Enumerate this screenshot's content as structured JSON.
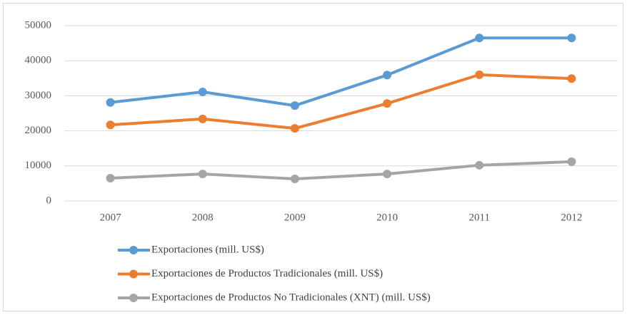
{
  "chart_data": {
    "type": "line",
    "categories": [
      "2007",
      "2008",
      "2009",
      "2010",
      "2011",
      "2012"
    ],
    "series": [
      {
        "name": "Exportaciones (mill. US$)",
        "color": "#5b9bd5",
        "values": [
          28100,
          31100,
          27200,
          35900,
          46500,
          46500
        ]
      },
      {
        "name": "Exportaciones de Productos Tradicionales (mill. US$)",
        "color": "#ed7d31",
        "values": [
          21700,
          23400,
          20700,
          27800,
          36000,
          34900
        ]
      },
      {
        "name": "Exportaciones de Productos No Tradicionales (XNT) (mill. US$)",
        "color": "#a5a5a5",
        "values": [
          6500,
          7700,
          6300,
          7700,
          10200,
          11200
        ]
      }
    ],
    "ylim": [
      0,
      50000
    ],
    "yticks": [
      0,
      10000,
      20000,
      30000,
      40000,
      50000
    ],
    "grid": true,
    "legend": "bottom"
  }
}
